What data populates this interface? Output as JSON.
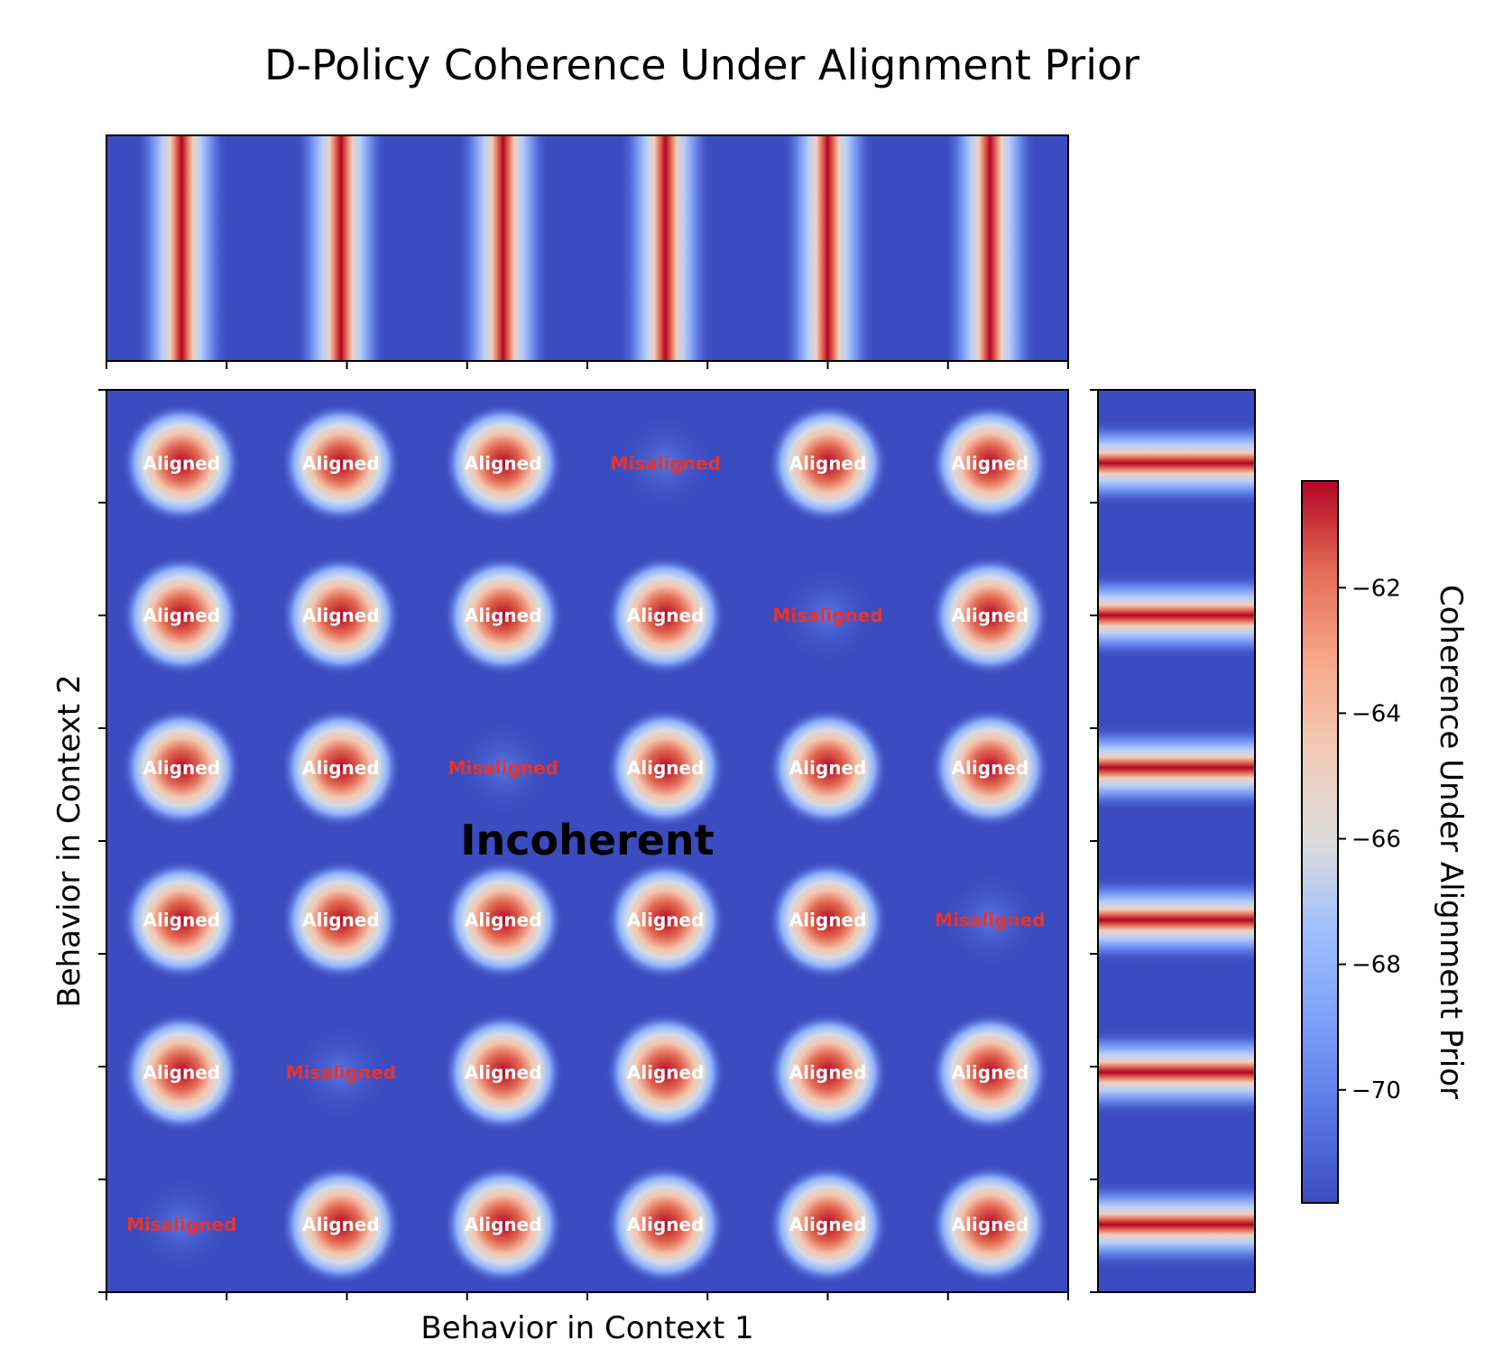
{
  "chart_data": {
    "type": "heatmap",
    "title": "D-Policy Coherence Under Alignment Prior",
    "xlabel": "Behavior in Context 1",
    "ylabel": "Behavior in Context 2",
    "colorbar_label": "Coherence Under Alignment Prior",
    "colormap": "coolwarm",
    "value_range": [
      -71.8,
      -60.3
    ],
    "colorbar_ticks": [
      -62,
      -64,
      -66,
      -68,
      -70
    ],
    "colorbar_tick_labels": [
      "−62",
      "−64",
      "−66",
      "−68",
      "−70"
    ],
    "background_value": -71.6,
    "grid": {
      "rows": 6,
      "cols": 6,
      "x_range": [
        0,
        8
      ],
      "y_range": [
        0,
        8
      ]
    },
    "peak_centers_x": [
      0.625,
      1.95,
      3.3,
      4.65,
      6.0,
      7.35
    ],
    "peak_centers_y": [
      0.6,
      1.95,
      3.3,
      4.65,
      6.0,
      7.35
    ],
    "peak_value": -60.3,
    "misaligned_peak_value": -71.0,
    "cell_labels": [
      [
        "Aligned",
        "Aligned",
        "Aligned",
        "Misaligned",
        "Aligned",
        "Aligned"
      ],
      [
        "Aligned",
        "Aligned",
        "Aligned",
        "Aligned",
        "Misaligned",
        "Aligned"
      ],
      [
        "Aligned",
        "Aligned",
        "Misaligned",
        "Aligned",
        "Aligned",
        "Aligned"
      ],
      [
        "Aligned",
        "Aligned",
        "Aligned",
        "Aligned",
        "Aligned",
        "Misaligned"
      ],
      [
        "Aligned",
        "Misaligned",
        "Aligned",
        "Aligned",
        "Aligned",
        "Aligned"
      ],
      [
        "Misaligned",
        "Aligned",
        "Aligned",
        "Aligned",
        "Aligned",
        "Aligned"
      ]
    ],
    "region_annotation": "Incoherent",
    "label_colors": {
      "Aligned": "#ffffff",
      "Misaligned": "#e8332c"
    },
    "top_marginal": {
      "type": "heatmap-profile",
      "orientation": "x",
      "peak_value": -60.3
    },
    "right_marginal": {
      "type": "heatmap-profile",
      "orientation": "y",
      "peak_value": -60.3
    }
  }
}
